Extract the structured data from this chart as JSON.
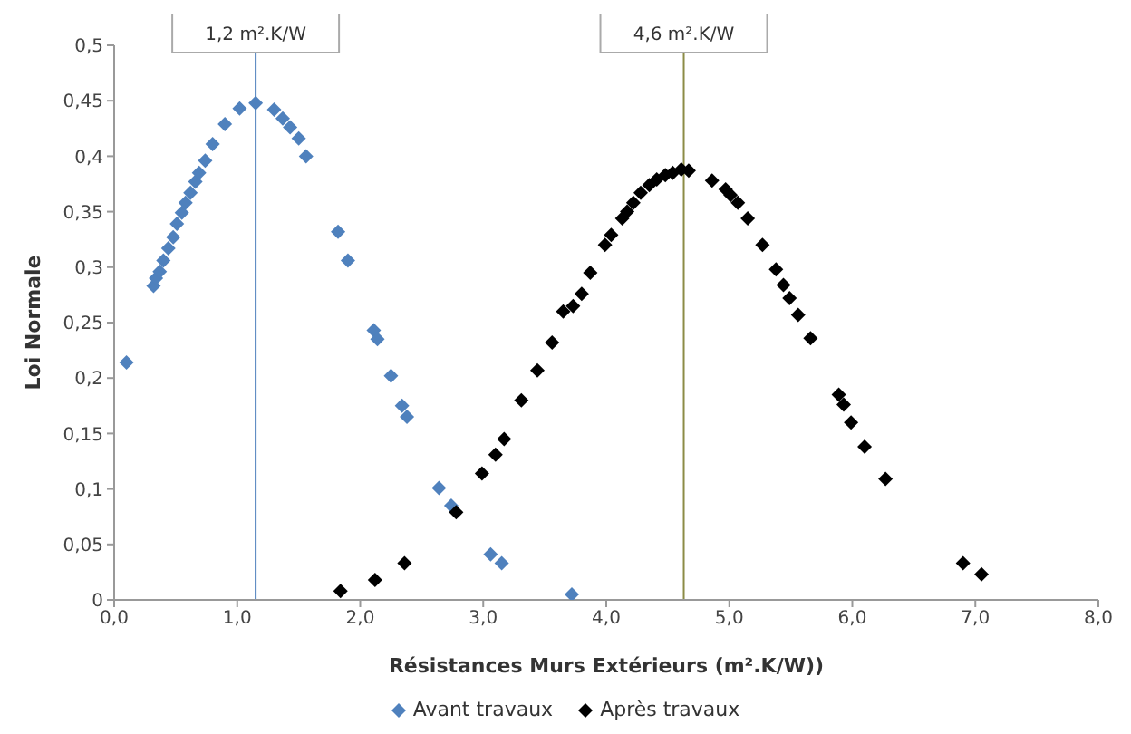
{
  "chart_data": {
    "type": "scatter",
    "xlabel": "Résistances Murs Extérieurs (m².K/W))",
    "ylabel": "Loi Normale",
    "marker": "diamond",
    "legend": "bottom",
    "grid": false,
    "xlim": [
      0,
      8
    ],
    "xticks": [
      {
        "value": 0,
        "label": "0,0"
      },
      {
        "value": 1,
        "label": "1,0"
      },
      {
        "value": 2,
        "label": "2,0"
      },
      {
        "value": 3,
        "label": "3,0"
      },
      {
        "value": 4,
        "label": "4,0"
      },
      {
        "value": 5,
        "label": "5,0"
      },
      {
        "value": 6,
        "label": "6,0"
      },
      {
        "value": 7,
        "label": "7,0"
      },
      {
        "value": 8,
        "label": "8,0"
      }
    ],
    "ylim": [
      0,
      0.5
    ],
    "yticks": [
      0,
      {
        "value": 0.05,
        "label": "0,05"
      },
      {
        "value": 0.1,
        "label": "0,1"
      },
      {
        "value": 0.15,
        "label": "0,15"
      },
      {
        "value": 0.2,
        "label": "0,2"
      },
      {
        "value": 0.25,
        "label": "0,25"
      },
      {
        "value": 0.3,
        "label": "0,3"
      },
      {
        "value": 0.35,
        "label": "0,35"
      },
      {
        "value": 0.4,
        "label": "0,4"
      },
      {
        "value": 0.45,
        "label": "0,45"
      },
      {
        "value": 0.5,
        "label": "0,5"
      }
    ],
    "ref_lines": [
      {
        "axis": "x",
        "value": 1.15,
        "label": "1,2 m².K/W",
        "color": "#4f81bd"
      },
      {
        "axis": "x",
        "value": 4.63,
        "label": "4,6 m².K/W",
        "color": "#8c8c46"
      }
    ],
    "series": [
      {
        "name": "Avant travaux",
        "color": "#4f81bd",
        "x": [
          0.1,
          0.32,
          0.34,
          0.37,
          0.4,
          0.44,
          0.48,
          0.51,
          0.55,
          0.58,
          0.62,
          0.66,
          0.69,
          0.74,
          0.8,
          0.9,
          1.02,
          1.15,
          1.3,
          1.37,
          1.43,
          1.5,
          1.56,
          1.82,
          1.9,
          2.11,
          2.14,
          2.25,
          2.34,
          2.38,
          2.64,
          2.74,
          3.06,
          3.15,
          3.72
        ],
        "values": [
          0.214,
          0.283,
          0.29,
          0.296,
          0.306,
          0.317,
          0.327,
          0.339,
          0.349,
          0.358,
          0.367,
          0.377,
          0.385,
          0.396,
          0.411,
          0.429,
          0.443,
          0.448,
          0.442,
          0.434,
          0.426,
          0.416,
          0.4,
          0.332,
          0.306,
          0.243,
          0.235,
          0.202,
          0.175,
          0.165,
          0.101,
          0.085,
          0.041,
          0.033,
          0.005
        ]
      },
      {
        "name": "Après travaux",
        "color": "#000000",
        "x": [
          1.84,
          2.12,
          2.36,
          2.78,
          2.99,
          3.1,
          3.17,
          3.31,
          3.44,
          3.56,
          3.65,
          3.73,
          3.8,
          3.87,
          3.99,
          4.04,
          4.13,
          4.17,
          4.22,
          4.28,
          4.35,
          4.41,
          4.48,
          4.54,
          4.61,
          4.67,
          4.86,
          4.97,
          5.01,
          5.07,
          5.15,
          5.27,
          5.38,
          5.44,
          5.49,
          5.56,
          5.66,
          5.89,
          5.93,
          5.99,
          6.1,
          6.27,
          6.9,
          7.05
        ],
        "values": [
          0.008,
          0.018,
          0.033,
          0.079,
          0.114,
          0.131,
          0.145,
          0.18,
          0.207,
          0.232,
          0.26,
          0.265,
          0.276,
          0.295,
          0.32,
          0.329,
          0.344,
          0.35,
          0.358,
          0.367,
          0.374,
          0.379,
          0.383,
          0.385,
          0.388,
          0.387,
          0.378,
          0.37,
          0.365,
          0.358,
          0.344,
          0.32,
          0.298,
          0.284,
          0.272,
          0.257,
          0.236,
          0.185,
          0.176,
          0.16,
          0.138,
          0.109,
          0.033,
          0.023
        ]
      }
    ]
  }
}
